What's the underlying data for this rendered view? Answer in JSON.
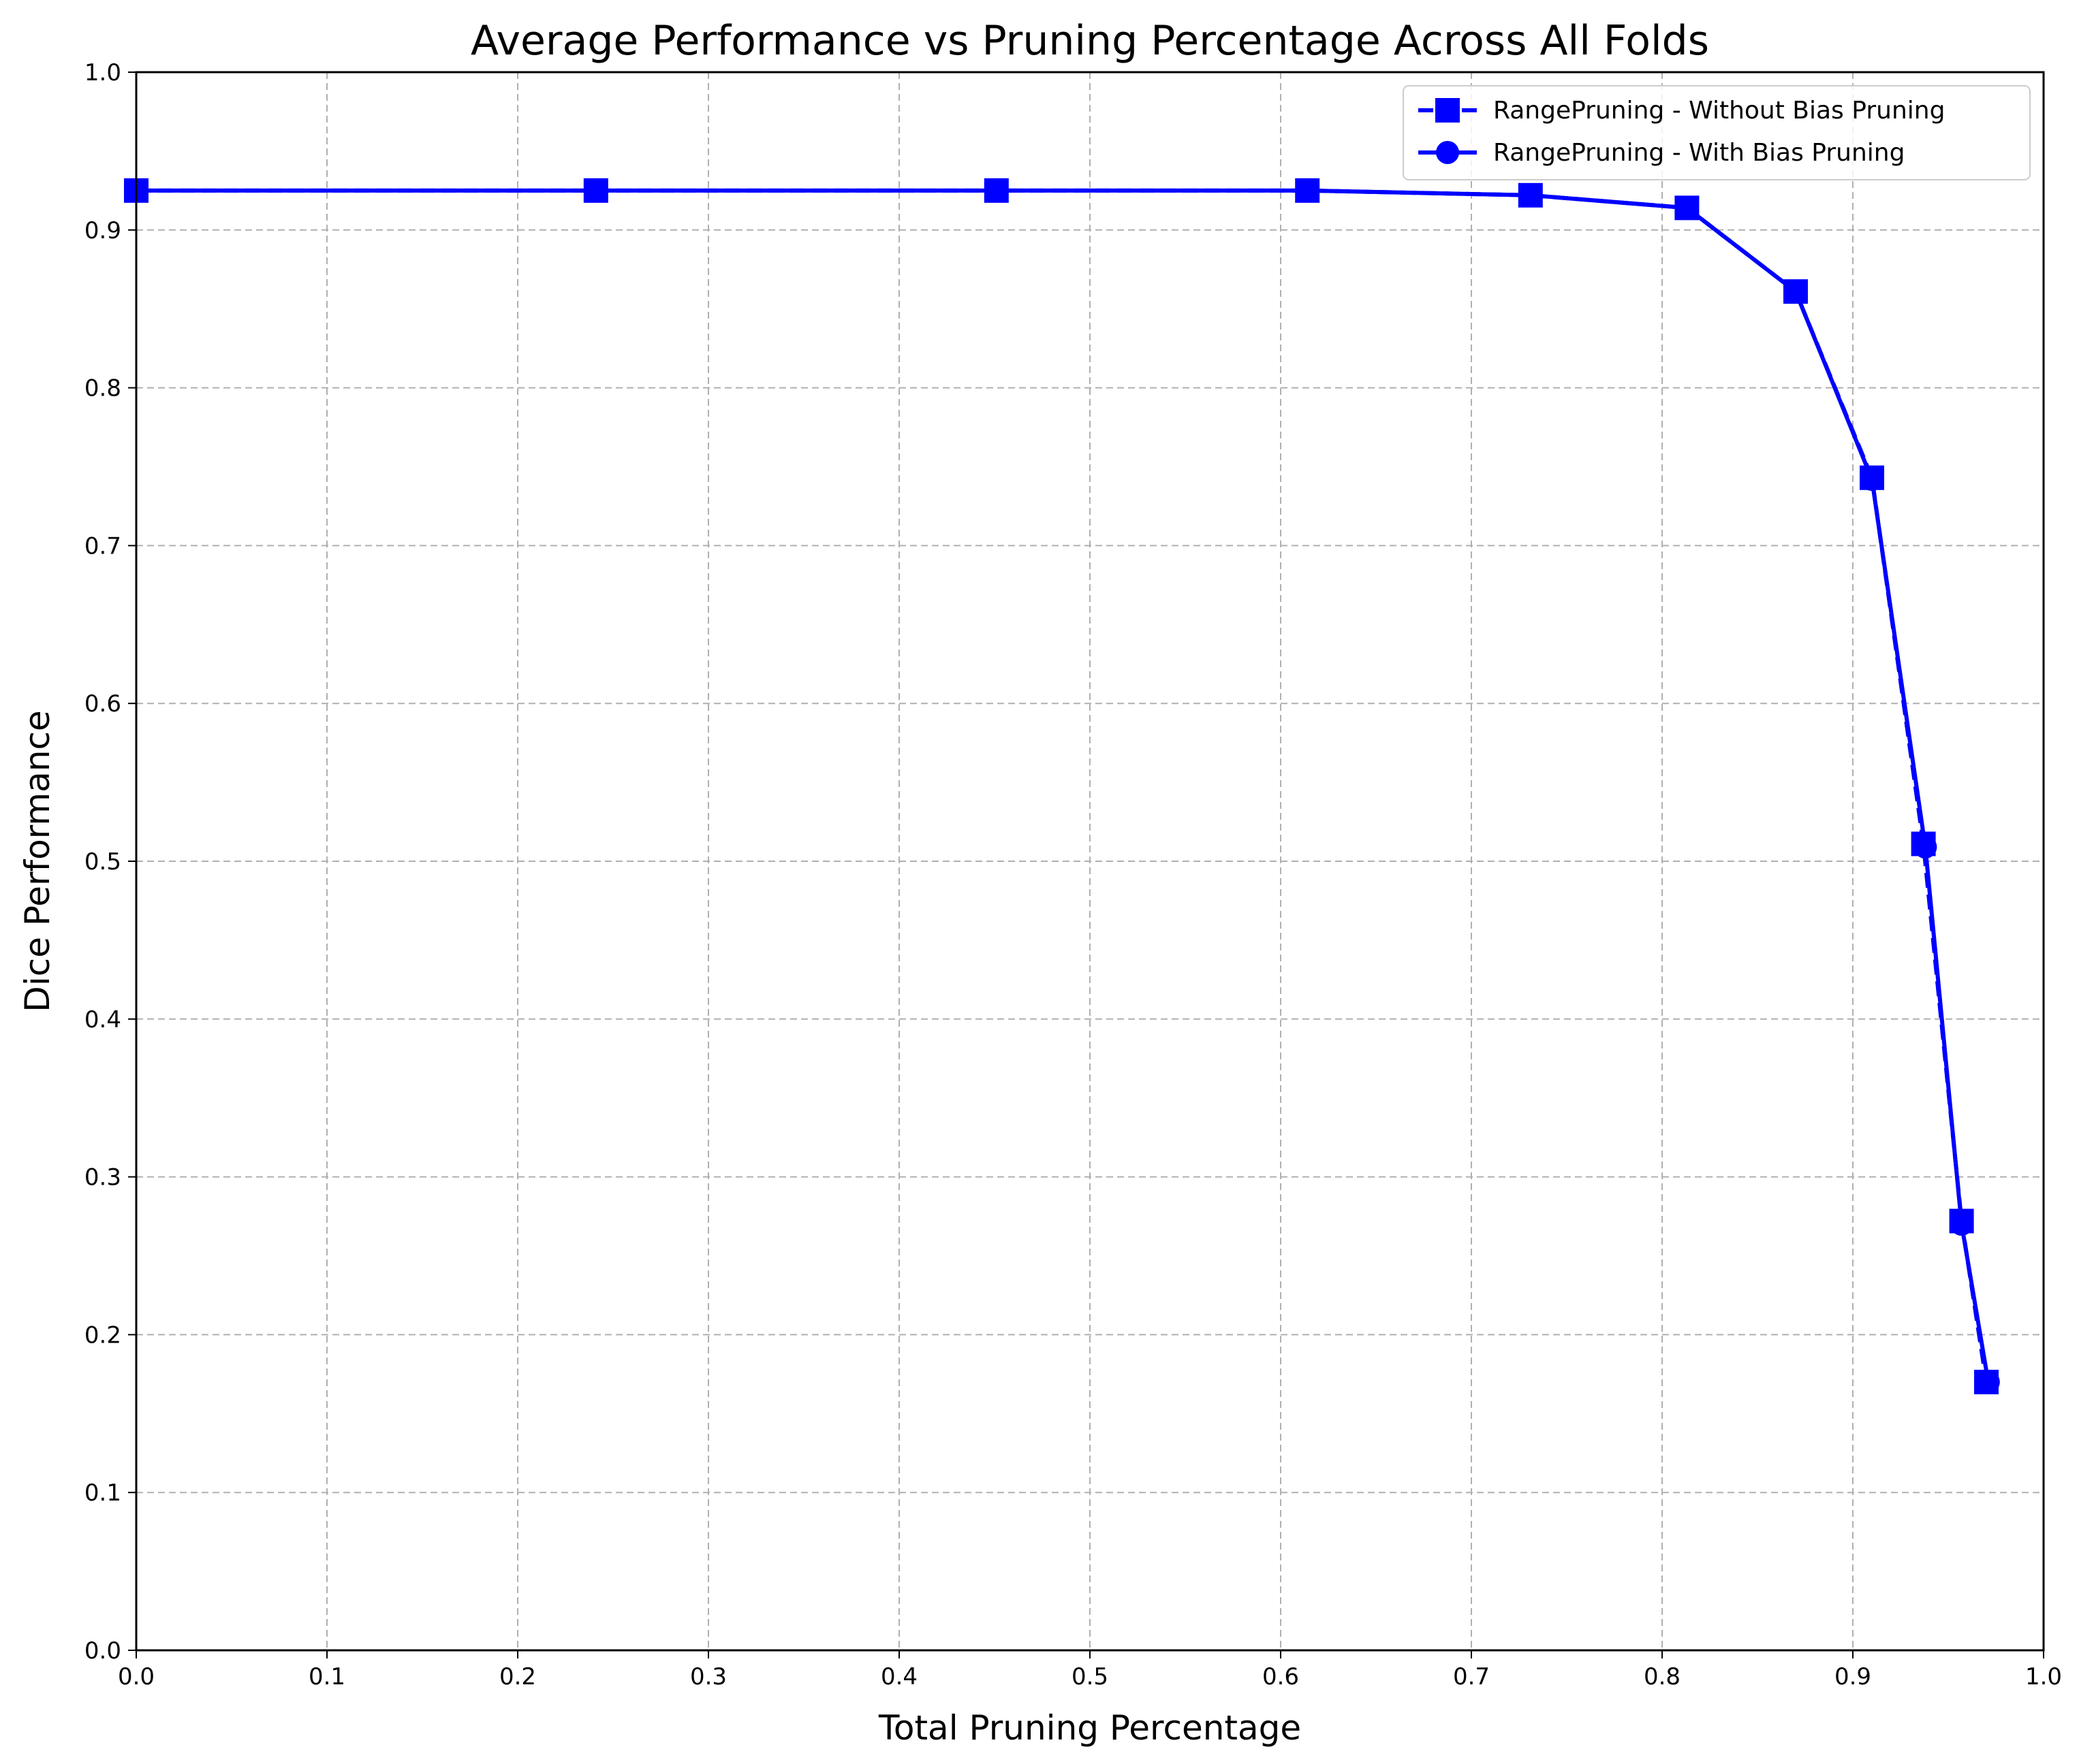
{
  "chart_data": {
    "type": "line",
    "title": "Average Performance vs Pruning Percentage Across All Folds",
    "xlabel": "Total Pruning Percentage",
    "ylabel": "Dice Performance",
    "xlim": [
      0.0,
      1.0
    ],
    "ylim": [
      0.0,
      1.0
    ],
    "xticks": [
      "0.0",
      "0.1",
      "0.2",
      "0.3",
      "0.4",
      "0.5",
      "0.6",
      "0.7",
      "0.8",
      "0.9",
      "1.0"
    ],
    "yticks": [
      "0.0",
      "0.1",
      "0.2",
      "0.3",
      "0.4",
      "0.5",
      "0.6",
      "0.7",
      "0.8",
      "0.9",
      "1.0"
    ],
    "grid": true,
    "legend_position": "top-right",
    "series": [
      {
        "name": "RangePruning - Without Bias Pruning",
        "color": "#0000ff",
        "marker": "square",
        "linestyle": "dashed",
        "x": [
          0.0,
          0.241,
          0.451,
          0.614,
          0.731,
          0.813,
          0.87,
          0.91,
          0.937,
          0.957,
          0.97
        ],
        "y": [
          0.925,
          0.925,
          0.925,
          0.925,
          0.922,
          0.914,
          0.861,
          0.743,
          0.511,
          0.272,
          0.17
        ]
      },
      {
        "name": "RangePruning - With Bias Pruning",
        "color": "#0000ff",
        "marker": "circle",
        "linestyle": "solid",
        "x": [
          0.0,
          0.241,
          0.451,
          0.614,
          0.731,
          0.813,
          0.87,
          0.91,
          0.938,
          0.957,
          0.971
        ],
        "y": [
          0.925,
          0.925,
          0.925,
          0.925,
          0.922,
          0.914,
          0.861,
          0.742,
          0.509,
          0.27,
          0.17
        ]
      }
    ]
  }
}
